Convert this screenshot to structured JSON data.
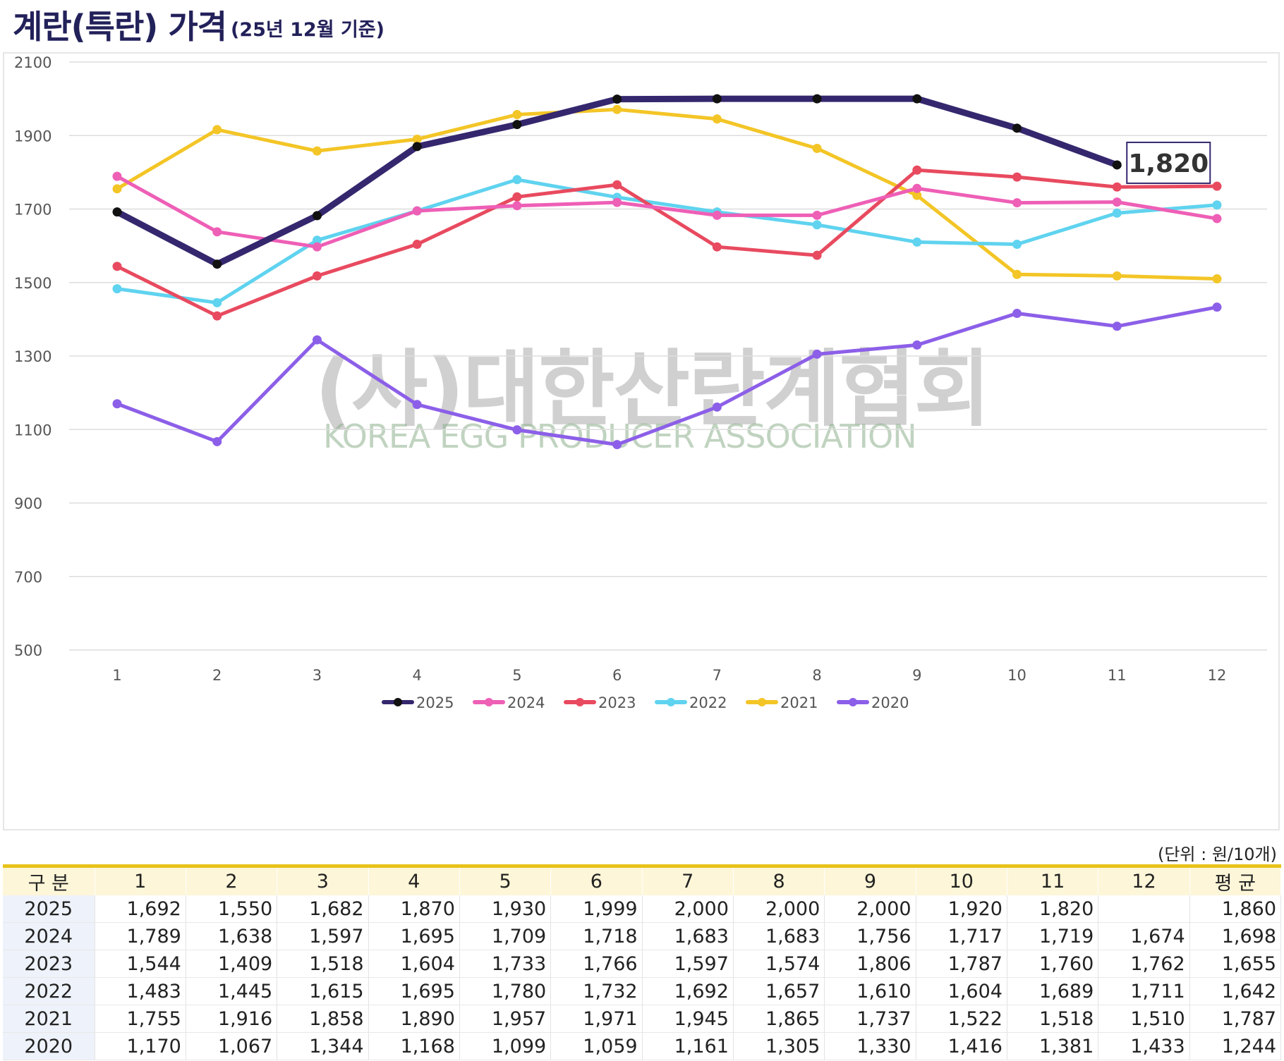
{
  "title": {
    "main": "계란(특란) 가격",
    "sub": "(25년 12월 기준)"
  },
  "watermark": {
    "korean": "(사)대한산란계협회",
    "english": "KOREA EGG PRODUCER ASSOCIATION"
  },
  "unit_label": "(단위 : 원/10개)",
  "callout": {
    "text": "1,820"
  },
  "chart_data": {
    "type": "line",
    "title": "계란(특란) 가격",
    "x": [
      1,
      2,
      3,
      4,
      5,
      6,
      7,
      8,
      9,
      10,
      11,
      12
    ],
    "ylim": [
      500,
      2100
    ],
    "yticks": [
      500,
      700,
      900,
      1100,
      1300,
      1500,
      1700,
      1900,
      2100
    ],
    "grid": true,
    "legend": "bottom",
    "series": [
      {
        "name": "2025",
        "color": "#35276e",
        "marker": "#111111",
        "width": 9,
        "values": [
          1692,
          1550,
          1682,
          1870,
          1930,
          1999,
          2000,
          2000,
          2000,
          1920,
          1820,
          null
        ]
      },
      {
        "name": "2024",
        "color": "#ee5fb6",
        "marker": "#ee5fb6",
        "width": 5,
        "values": [
          1789,
          1638,
          1597,
          1695,
          1709,
          1718,
          1683,
          1683,
          1756,
          1717,
          1719,
          1674
        ]
      },
      {
        "name": "2023",
        "color": "#e84a5f",
        "marker": "#e84a5f",
        "width": 5,
        "values": [
          1544,
          1409,
          1518,
          1604,
          1733,
          1766,
          1597,
          1574,
          1806,
          1787,
          1760,
          1762
        ]
      },
      {
        "name": "2022",
        "color": "#5fd3ef",
        "marker": "#5fd3ef",
        "width": 5,
        "values": [
          1483,
          1445,
          1615,
          1695,
          1780,
          1732,
          1692,
          1657,
          1610,
          1604,
          1689,
          1711
        ]
      },
      {
        "name": "2021",
        "color": "#f3c526",
        "marker": "#f3c526",
        "width": 5,
        "values": [
          1755,
          1916,
          1858,
          1890,
          1957,
          1971,
          1945,
          1865,
          1737,
          1522,
          1518,
          1510
        ]
      },
      {
        "name": "2020",
        "color": "#8c5fe8",
        "marker": "#8c5fe8",
        "width": 5,
        "values": [
          1170,
          1067,
          1344,
          1168,
          1099,
          1059,
          1161,
          1305,
          1330,
          1416,
          1381,
          1433
        ]
      }
    ]
  },
  "table": {
    "headers": [
      "구 분",
      "1",
      "2",
      "3",
      "4",
      "5",
      "6",
      "7",
      "8",
      "9",
      "10",
      "11",
      "12",
      "평 균"
    ],
    "rows": [
      [
        "2025",
        "1,692",
        "1,550",
        "1,682",
        "1,870",
        "1,930",
        "1,999",
        "2,000",
        "2,000",
        "2,000",
        "1,920",
        "1,820",
        "",
        "1,860"
      ],
      [
        "2024",
        "1,789",
        "1,638",
        "1,597",
        "1,695",
        "1,709",
        "1,718",
        "1,683",
        "1,683",
        "1,756",
        "1,717",
        "1,719",
        "1,674",
        "1,698"
      ],
      [
        "2023",
        "1,544",
        "1,409",
        "1,518",
        "1,604",
        "1,733",
        "1,766",
        "1,597",
        "1,574",
        "1,806",
        "1,787",
        "1,760",
        "1,762",
        "1,655"
      ],
      [
        "2022",
        "1,483",
        "1,445",
        "1,615",
        "1,695",
        "1,780",
        "1,732",
        "1,692",
        "1,657",
        "1,610",
        "1,604",
        "1,689",
        "1,711",
        "1,642"
      ],
      [
        "2021",
        "1,755",
        "1,916",
        "1,858",
        "1,890",
        "1,957",
        "1,971",
        "1,945",
        "1,865",
        "1,737",
        "1,522",
        "1,518",
        "1,510",
        "1,787"
      ],
      [
        "2020",
        "1,170",
        "1,067",
        "1,344",
        "1,168",
        "1,099",
        "1,059",
        "1,161",
        "1,305",
        "1,330",
        "1,416",
        "1,381",
        "1,433",
        "1,244"
      ]
    ]
  }
}
